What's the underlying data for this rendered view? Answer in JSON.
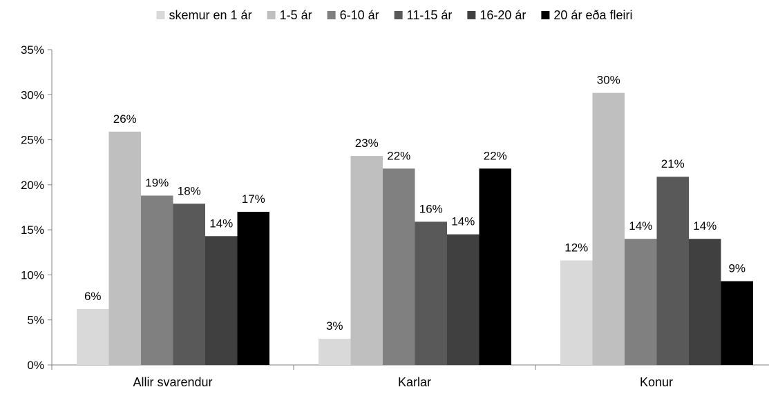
{
  "chart_data": {
    "type": "bar",
    "title": "",
    "xlabel": "",
    "ylabel": "",
    "categories": [
      "Allir svarendur",
      "Karlar",
      "Konur"
    ],
    "ylim": [
      0,
      35
    ],
    "yticks": [
      0,
      5,
      10,
      15,
      20,
      25,
      30,
      35
    ],
    "ytick_labels": [
      "0%",
      "5%",
      "10%",
      "15%",
      "20%",
      "25%",
      "30%",
      "35%"
    ],
    "grid": false,
    "legend_position": "top",
    "series": [
      {
        "name": "skemur en 1 ár",
        "color": "#d9d9d9",
        "values": [
          6.2,
          2.9,
          11.6
        ],
        "labels": [
          "6%",
          "3%",
          "12%"
        ]
      },
      {
        "name": "1-5 ár",
        "color": "#bfbfbf",
        "values": [
          25.9,
          23.2,
          30.2
        ],
        "labels": [
          "26%",
          "23%",
          "30%"
        ]
      },
      {
        "name": "6-10 ár",
        "color": "#808080",
        "values": [
          18.8,
          21.8,
          14.0
        ],
        "labels": [
          "19%",
          "22%",
          "14%"
        ]
      },
      {
        "name": "11-15 ár",
        "color": "#595959",
        "values": [
          17.9,
          15.9,
          20.9
        ],
        "labels": [
          "18%",
          "16%",
          "21%"
        ]
      },
      {
        "name": "16-20 ár",
        "color": "#404040",
        "values": [
          14.3,
          14.5,
          14.0
        ],
        "labels": [
          "14%",
          "14%",
          "14%"
        ]
      },
      {
        "name": "20 ár eða fleiri",
        "color": "#000000",
        "values": [
          17.0,
          21.8,
          9.3
        ],
        "labels": [
          "17%",
          "22%",
          "9%"
        ]
      }
    ]
  }
}
